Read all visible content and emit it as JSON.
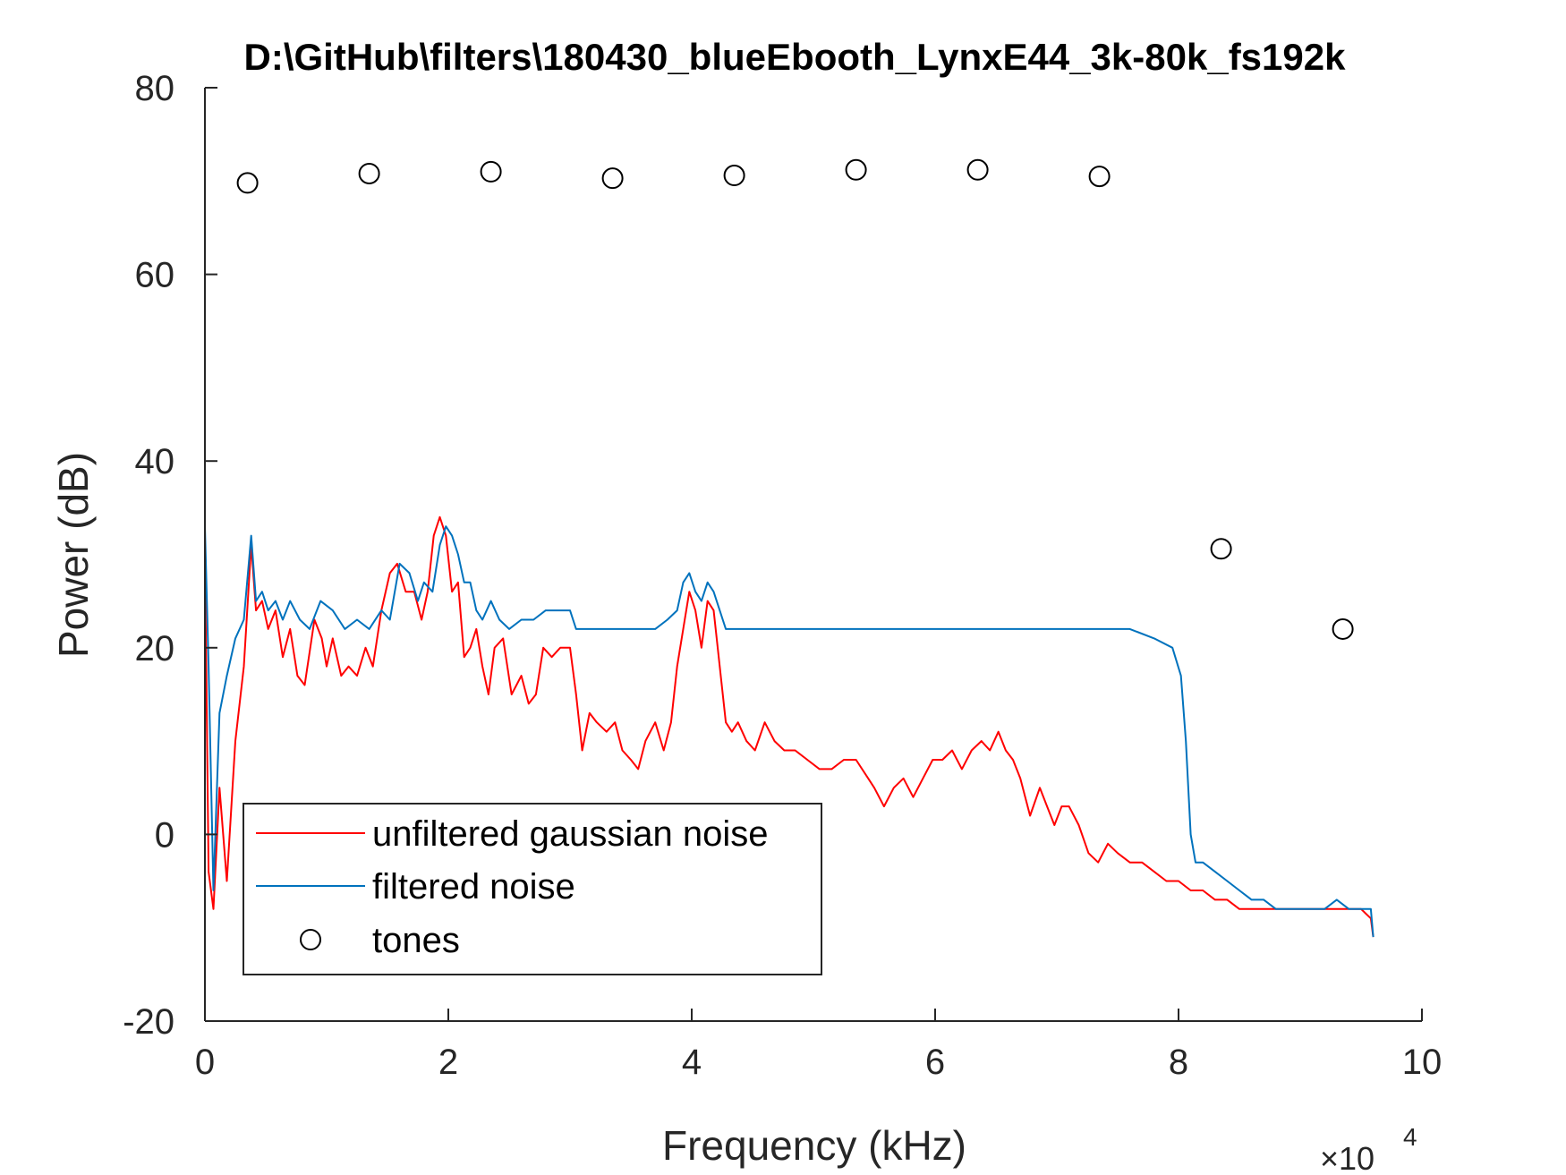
{
  "chart_data": {
    "type": "line",
    "title": "D:\\GitHub\\filters\\180430_blueEbooth_LynxE44_3k-80k_fs192k",
    "xlabel": "Frequency (kHz)",
    "ylabel": "Power (dB)",
    "x_exponent_base": "×10",
    "x_exponent_power": "4",
    "xlim": [
      0,
      10
    ],
    "ylim": [
      -20,
      80
    ],
    "xticks": [
      0,
      2,
      4,
      6,
      8,
      10
    ],
    "xtick_labels": [
      "0",
      "2",
      "4",
      "6",
      "8",
      "10"
    ],
    "yticks": [
      -20,
      0,
      20,
      40,
      60,
      80
    ],
    "ytick_labels": [
      "-20",
      "0",
      "20",
      "40",
      "60",
      "80"
    ],
    "grid": false,
    "legend_position": "bottom-left",
    "series": [
      {
        "name": "unfiltered gaussian noise",
        "style": "line",
        "color": "#ff0000",
        "x": [
          0,
          0.03,
          0.07,
          0.12,
          0.18,
          0.25,
          0.32,
          0.38,
          0.42,
          0.47,
          0.52,
          0.58,
          0.64,
          0.7,
          0.76,
          0.82,
          0.9,
          0.96,
          1.0,
          1.05,
          1.12,
          1.18,
          1.25,
          1.32,
          1.38,
          1.45,
          1.52,
          1.58,
          1.65,
          1.72,
          1.78,
          1.83,
          1.88,
          1.93,
          1.98,
          2.03,
          2.08,
          2.13,
          2.18,
          2.23,
          2.28,
          2.33,
          2.38,
          2.45,
          2.52,
          2.6,
          2.66,
          2.72,
          2.78,
          2.85,
          2.92,
          3.0,
          3.05,
          3.1,
          3.16,
          3.22,
          3.3,
          3.37,
          3.43,
          3.5,
          3.56,
          3.62,
          3.7,
          3.77,
          3.83,
          3.88,
          3.93,
          3.98,
          4.03,
          4.08,
          4.13,
          4.18,
          4.23,
          4.28,
          4.33,
          4.38,
          4.45,
          4.52,
          4.6,
          4.68,
          4.76,
          4.85,
          4.95,
          5.05,
          5.15,
          5.25,
          5.35,
          5.45,
          5.5,
          5.58,
          5.66,
          5.74,
          5.82,
          5.9,
          5.98,
          6.06,
          6.14,
          6.22,
          6.3,
          6.38,
          6.45,
          6.52,
          6.58,
          6.64,
          6.7,
          6.78,
          6.86,
          6.92,
          6.98,
          7.04,
          7.1,
          7.18,
          7.26,
          7.34,
          7.42,
          7.5,
          7.6,
          7.7,
          7.8,
          7.9,
          8.0,
          8.1,
          8.2,
          8.3,
          8.4,
          8.5,
          8.6,
          8.7,
          8.8,
          8.9,
          9.0,
          9.1,
          9.2,
          9.3,
          9.4,
          9.5,
          9.58,
          9.6
        ],
        "y": [
          30,
          -4,
          -8,
          5,
          -5,
          10,
          18,
          31,
          24,
          25,
          22,
          24,
          19,
          22,
          17,
          16,
          23,
          21,
          18,
          21,
          17,
          18,
          17,
          20,
          18,
          24,
          28,
          29,
          26,
          26,
          23,
          26,
          32,
          34,
          32,
          26,
          27,
          19,
          20,
          22,
          18,
          15,
          20,
          21,
          15,
          17,
          14,
          15,
          20,
          19,
          20,
          20,
          15,
          9,
          13,
          12,
          11,
          12,
          9,
          8,
          7,
          10,
          12,
          9,
          12,
          18,
          22,
          26,
          24,
          20,
          25,
          24,
          18,
          12,
          11,
          12,
          10,
          9,
          12,
          10,
          9,
          9,
          8,
          7,
          7,
          8,
          8,
          6,
          5,
          3,
          5,
          6,
          4,
          6,
          8,
          8,
          9,
          7,
          9,
          10,
          9,
          11,
          9,
          8,
          6,
          2,
          5,
          3,
          1,
          3,
          3,
          1,
          -2,
          -3,
          -1,
          -2,
          -3,
          -3,
          -4,
          -5,
          -5,
          -6,
          -6,
          -7,
          -7,
          -8,
          -8,
          -8,
          -8,
          -8,
          -8,
          -8,
          -8,
          -8,
          -8,
          -8,
          -9,
          -11
        ],
        "marker": "none"
      },
      {
        "name": "filtered noise",
        "style": "line",
        "color": "#0072bd",
        "x": [
          0,
          0.03,
          0.07,
          0.12,
          0.18,
          0.25,
          0.32,
          0.38,
          0.42,
          0.47,
          0.52,
          0.58,
          0.64,
          0.7,
          0.78,
          0.86,
          0.95,
          1.05,
          1.15,
          1.25,
          1.35,
          1.45,
          1.52,
          1.6,
          1.68,
          1.75,
          1.8,
          1.87,
          1.93,
          1.98,
          2.03,
          2.08,
          2.13,
          2.18,
          2.23,
          2.28,
          2.35,
          2.42,
          2.5,
          2.6,
          2.7,
          2.8,
          2.9,
          3.0,
          3.05,
          3.1,
          3.2,
          3.3,
          3.4,
          3.5,
          3.6,
          3.7,
          3.8,
          3.88,
          3.93,
          3.98,
          4.03,
          4.08,
          4.13,
          4.18,
          4.23,
          4.28,
          4.35,
          4.45,
          4.6,
          4.8,
          5.0,
          5.2,
          5.4,
          5.6,
          5.8,
          6.0,
          6.2,
          6.4,
          6.6,
          6.8,
          7.0,
          7.2,
          7.4,
          7.6,
          7.8,
          7.95,
          8.02,
          8.06,
          8.1,
          8.14,
          8.2,
          8.3,
          8.4,
          8.5,
          8.6,
          8.7,
          8.8,
          8.9,
          9.0,
          9.1,
          9.2,
          9.3,
          9.4,
          9.5,
          9.58,
          9.6
        ],
        "y": [
          33,
          18,
          -6,
          13,
          17,
          21,
          23,
          32,
          25,
          26,
          24,
          25,
          23,
          25,
          23,
          22,
          25,
          24,
          22,
          23,
          22,
          24,
          23,
          29,
          28,
          25,
          27,
          26,
          31,
          33,
          32,
          30,
          27,
          27,
          24,
          23,
          25,
          23,
          22,
          23,
          23,
          24,
          24,
          24,
          22,
          22,
          22,
          22,
          22,
          22,
          22,
          22,
          23,
          24,
          27,
          28,
          26,
          25,
          27,
          26,
          24,
          22,
          22,
          22,
          22,
          22,
          22,
          22,
          22,
          22,
          22,
          22,
          22,
          22,
          22,
          22,
          22,
          22,
          22,
          22,
          21,
          20,
          17,
          10,
          0,
          -3,
          -3,
          -4,
          -5,
          -6,
          -7,
          -7,
          -8,
          -8,
          -8,
          -8,
          -8,
          -7,
          -8,
          -8,
          -8,
          -11
        ],
        "marker": "none"
      },
      {
        "name": "tones",
        "style": "marker",
        "marker": "circle",
        "color": "#000000",
        "x": [
          0.35,
          1.35,
          2.35,
          3.35,
          4.35,
          5.35,
          6.35,
          7.35,
          8.35,
          9.35
        ],
        "y": [
          69.8,
          70.8,
          71.0,
          70.3,
          70.6,
          71.2,
          71.2,
          70.5,
          30.6,
          22.0
        ]
      }
    ]
  }
}
